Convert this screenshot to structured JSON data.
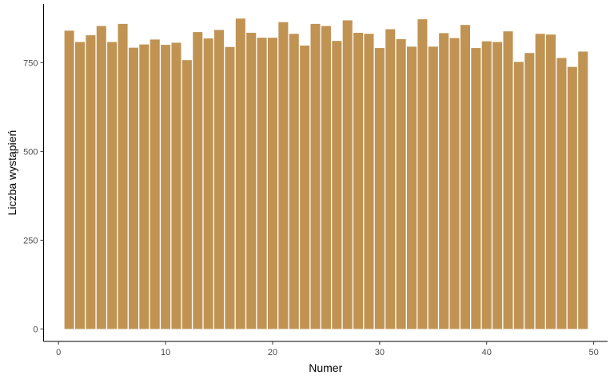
{
  "chart_data": {
    "type": "bar",
    "title": "",
    "xlabel": "Numer",
    "ylabel": "Liczba wystąpień",
    "x": [
      1,
      2,
      3,
      4,
      5,
      6,
      7,
      8,
      9,
      10,
      11,
      12,
      13,
      14,
      15,
      16,
      17,
      18,
      19,
      20,
      21,
      22,
      23,
      24,
      25,
      26,
      27,
      28,
      29,
      30,
      31,
      32,
      33,
      34,
      35,
      36,
      37,
      38,
      39,
      40,
      41,
      42,
      43,
      44,
      45,
      46,
      47,
      48,
      49
    ],
    "values": [
      840,
      808,
      827,
      853,
      808,
      859,
      792,
      801,
      815,
      800,
      806,
      757,
      836,
      818,
      842,
      794,
      874,
      834,
      820,
      820,
      864,
      831,
      798,
      859,
      853,
      811,
      869,
      834,
      831,
      791,
      844,
      816,
      795,
      872,
      795,
      833,
      819,
      856,
      791,
      810,
      808,
      838,
      752,
      777,
      831,
      829,
      763,
      738,
      781
    ],
    "xlim": [
      -1.4,
      51.3
    ],
    "ylim": [
      -35,
      915
    ],
    "x_ticks": [
      0,
      10,
      20,
      30,
      40,
      50
    ],
    "y_ticks": [
      0,
      250,
      500,
      750
    ],
    "x_tick_labels": [
      "0",
      "10",
      "20",
      "30",
      "40",
      "50"
    ],
    "y_tick_labels": [
      "0",
      "250",
      "500",
      "750"
    ],
    "bar_color": "#c09353",
    "grid": false,
    "legend": "none"
  }
}
